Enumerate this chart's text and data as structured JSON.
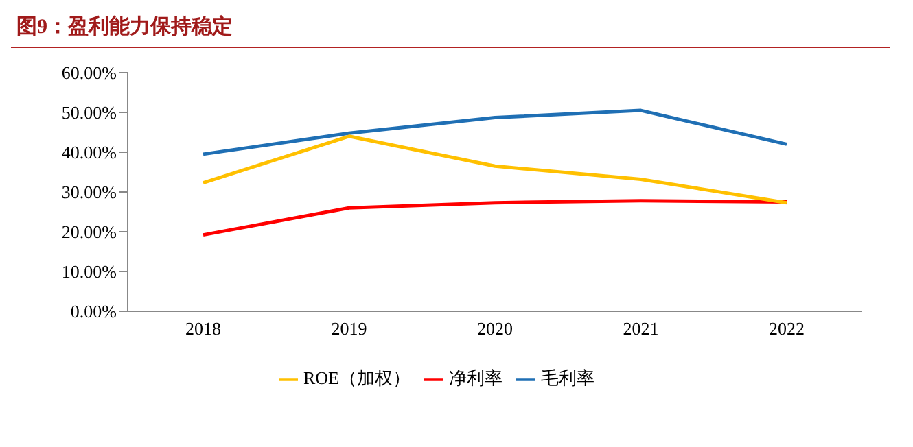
{
  "chart_data": {
    "type": "line",
    "title": "图9：盈利能力保持稳定",
    "categories": [
      "2018",
      "2019",
      "2020",
      "2021",
      "2022"
    ],
    "series": [
      {
        "name": "毛利率",
        "color": "#1f6fb4",
        "values": [
          39.5,
          44.8,
          48.7,
          50.5,
          42.0
        ]
      },
      {
        "name": "净利率",
        "color": "#ff0000",
        "values": [
          19.2,
          26.0,
          27.3,
          27.8,
          27.5
        ]
      },
      {
        "name": "ROE（加权）",
        "color": "#ffc000",
        "values": [
          32.3,
          44.0,
          36.5,
          33.2,
          27.3
        ]
      }
    ],
    "ylim": [
      0,
      60
    ],
    "yticks": [
      {
        "value": 0,
        "label": "0.00%"
      },
      {
        "value": 10,
        "label": "10.00%"
      },
      {
        "value": 20,
        "label": "20.00%"
      },
      {
        "value": 30,
        "label": "30.00%"
      },
      {
        "value": 40,
        "label": "40.00%"
      },
      {
        "value": 50,
        "label": "50.00%"
      },
      {
        "value": 60,
        "label": "60.00%"
      }
    ],
    "grid": false,
    "legend": "bottom",
    "marker": "none",
    "line_style": "solid"
  }
}
